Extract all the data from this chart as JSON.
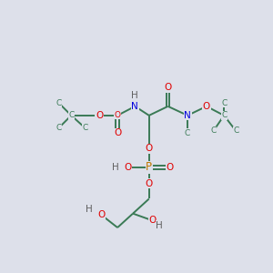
{
  "bg_color": "#dde0ea",
  "bond_color": "#3a7a55",
  "atom_colors": {
    "O": "#e00000",
    "N": "#0000dd",
    "P": "#c07800",
    "H": "#606060",
    "C": "#3a7a55"
  },
  "font_size": 7.5,
  "lw": 1.4
}
